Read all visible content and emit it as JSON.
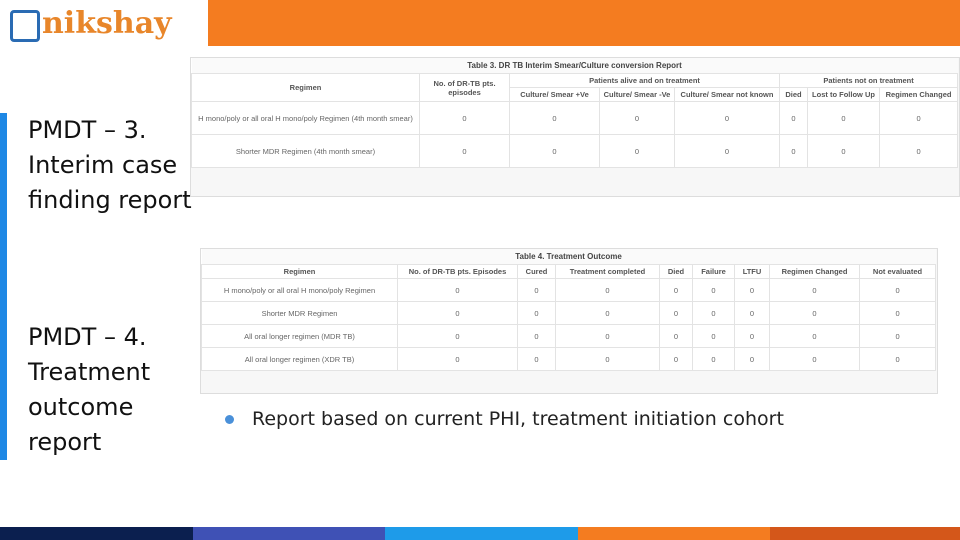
{
  "logo": {
    "text": "nikshay"
  },
  "sections": [
    {
      "label": "PMDT – 3. Interim case finding report"
    },
    {
      "label": "PMDT – 4. Treatment outcome report"
    }
  ],
  "table3": {
    "title": "Table 3. DR TB Interim Smear/Culture conversion Report",
    "groups": [
      "Patients alive and on treatment",
      "Patients not on treatment"
    ],
    "columns": [
      "Regimen",
      "No. of DR-TB pts. episodes",
      "Culture/ Smear +Ve",
      "Culture/ Smear -Ve",
      "Culture/ Smear not known",
      "Died",
      "Lost to Follow Up",
      "Regimen Changed"
    ],
    "rows": [
      [
        "H mono/poly or all oral H mono/poly Regimen (4th month smear)",
        0,
        0,
        0,
        0,
        0,
        0,
        0
      ],
      [
        "Shorter MDR Regimen (4th month smear)",
        0,
        0,
        0,
        0,
        0,
        0,
        0
      ]
    ]
  },
  "table4": {
    "title": "Table 4. Treatment Outcome",
    "columns": [
      "Regimen",
      "No. of DR-TB pts. Episodes",
      "Cured",
      "Treatment completed",
      "Died",
      "Failure",
      "LTFU",
      "Regimen Changed",
      "Not evaluated"
    ],
    "rows": [
      [
        "H mono/poly or all oral H mono/poly Regimen",
        0,
        0,
        0,
        0,
        0,
        0,
        0,
        0
      ],
      [
        "Shorter MDR Regimen",
        0,
        0,
        0,
        0,
        0,
        0,
        0,
        0
      ],
      [
        "All oral longer regimen (MDR TB)",
        0,
        0,
        0,
        0,
        0,
        0,
        0,
        0
      ],
      [
        "All oral longer regimen (XDR TB)",
        0,
        0,
        0,
        0,
        0,
        0,
        0,
        0
      ]
    ]
  },
  "bullet": "Report based on current PHI, treatment initiation cohort"
}
